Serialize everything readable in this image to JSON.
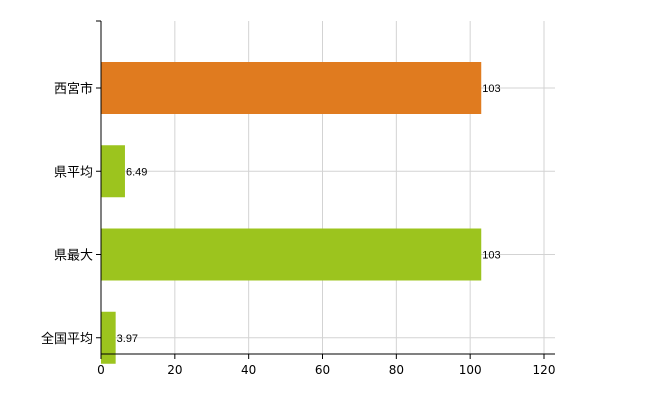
{
  "chart_data": {
    "type": "bar",
    "orientation": "horizontal",
    "categories": [
      "西宮市",
      "県平均",
      "県最大",
      "全国平均"
    ],
    "values": [
      103,
      6.49,
      103,
      3.97
    ],
    "data_labels": [
      "103",
      "6.49",
      "103",
      "3.97"
    ],
    "xlim": [
      0,
      120
    ],
    "x_ticks": [
      "0",
      "20",
      "40",
      "60",
      "80",
      "100",
      "120"
    ],
    "grid": true,
    "colors": {
      "highlight": "#E07B1F",
      "default": "#9CC41E",
      "grid": "#D3D3D3",
      "axis": "#000000"
    },
    "highlight_index": 0
  }
}
